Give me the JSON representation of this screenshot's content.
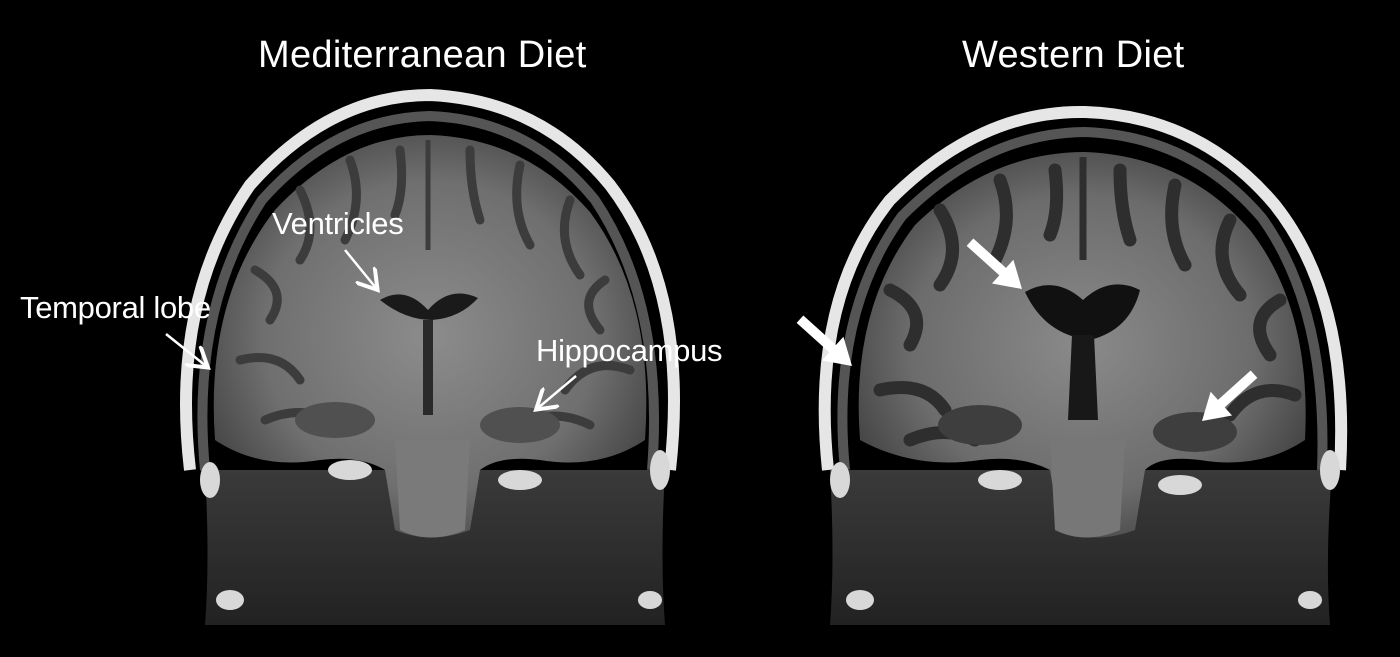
{
  "panels": {
    "left": {
      "title": "Mediterranean  Diet",
      "labels": {
        "ventricles": "Ventricles",
        "temporal_lobe": "Temporal lobe",
        "hippocampus": "Hippocampus"
      }
    },
    "right": {
      "title": "Western Diet"
    }
  }
}
